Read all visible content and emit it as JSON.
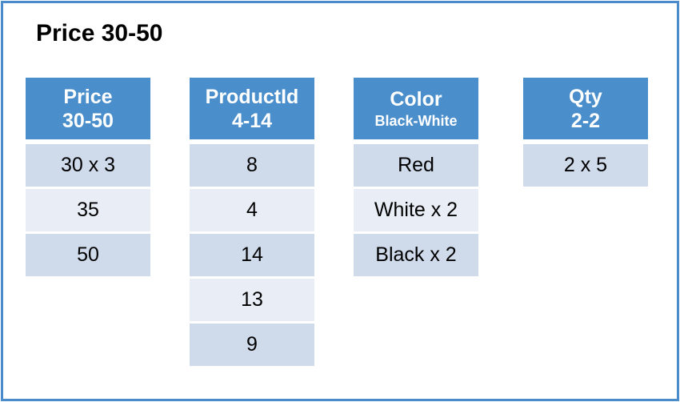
{
  "title": "Price 30-50",
  "colors": {
    "border": "#4a8ccb",
    "header": "#4a8ecb",
    "row_dark": "#cfdaeb",
    "row_light": "#e8edf6"
  },
  "columns": [
    {
      "name": "Price",
      "range": "30-50",
      "values": [
        "30 x 3",
        "35",
        "50"
      ]
    },
    {
      "name": "ProductId",
      "range": "4-14",
      "values": [
        "8",
        "4",
        "14",
        "13",
        "9"
      ]
    },
    {
      "name": "Color",
      "range": "Black-White",
      "values": [
        "Red",
        "White x 2",
        "Black x 2"
      ]
    },
    {
      "name": "Qty",
      "range": "2-2",
      "values": [
        "2 x 5"
      ]
    }
  ]
}
